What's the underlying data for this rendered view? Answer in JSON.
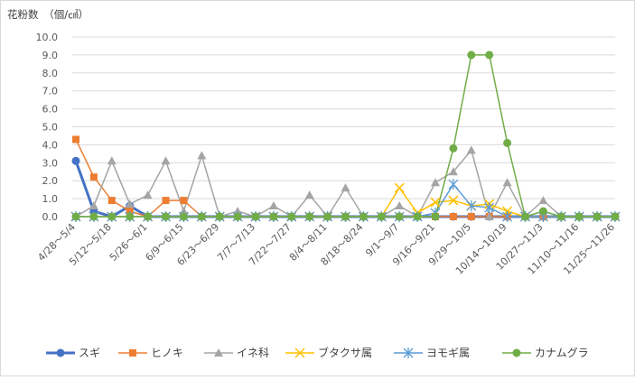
{
  "chart_data": {
    "type": "line",
    "ylabel": "花粉数　（個/㎠）",
    "ylim": [
      0,
      10
    ],
    "yticks": [
      "0.0",
      "1.0",
      "2.0",
      "3.0",
      "4.0",
      "5.0",
      "6.0",
      "7.0",
      "8.0",
      "9.0",
      "10.0"
    ],
    "xticks": [
      "4/28～5/4",
      "5/12～5/18",
      "5/26～6/1",
      "6/9～6/15",
      "6/23～6/29",
      "7/7～7/13",
      "7/22～7/27",
      "8/4～8/11",
      "8/18～8/24",
      "9/1～9/7",
      "9/16～9/21",
      "9/29～10/5",
      "10/14～10/19",
      "10/27～11/3",
      "11/10～11/16",
      "11/25～11/26"
    ],
    "n_points": 31,
    "legend_position": "bottom",
    "series": [
      {
        "name": "スギ",
        "color": "#4472C4",
        "marker": "circle",
        "width": 3,
        "values": [
          3.1,
          0.3,
          0,
          0.6,
          0,
          0,
          0,
          0,
          0,
          0,
          0,
          0,
          0,
          0,
          0,
          0,
          0,
          0,
          0,
          0,
          0,
          0,
          0,
          0,
          0,
          0,
          0,
          0,
          0,
          0,
          0
        ]
      },
      {
        "name": "ヒノキ",
        "color": "#ED7D31",
        "marker": "square",
        "width": 1.5,
        "values": [
          4.3,
          2.2,
          0.9,
          0.3,
          0,
          0.9,
          0.9,
          0,
          0,
          0,
          0,
          0,
          0,
          0,
          0,
          0,
          0,
          0,
          0,
          0,
          0,
          0,
          0,
          0,
          0,
          0,
          0,
          0,
          0,
          0,
          0
        ]
      },
      {
        "name": "イネ科",
        "color": "#A5A5A5",
        "marker": "triangle",
        "width": 1.5,
        "values": [
          0,
          0.6,
          3.1,
          0.7,
          1.2,
          3.1,
          0.3,
          3.4,
          0,
          0.3,
          0,
          0.6,
          0,
          1.2,
          0,
          1.6,
          0,
          0,
          0.6,
          0,
          1.9,
          2.5,
          3.7,
          0,
          1.9,
          0,
          0.9,
          0,
          0,
          0,
          0
        ]
      },
      {
        "name": "ブタクサ属",
        "color": "#FFC000",
        "marker": "x",
        "width": 1.5,
        "values": [
          0,
          0,
          0,
          0,
          0,
          0,
          0,
          0,
          0,
          0,
          0,
          0,
          0,
          0,
          0,
          0,
          0,
          0,
          1.6,
          0.2,
          0.8,
          0.9,
          0.6,
          0.7,
          0.3,
          0,
          0,
          0,
          0,
          0,
          0
        ]
      },
      {
        "name": "ヨモギ属",
        "color": "#5B9BD5",
        "marker": "star",
        "width": 1.5,
        "values": [
          0,
          0,
          0,
          0,
          0,
          0,
          0,
          0,
          0,
          0,
          0,
          0,
          0,
          0,
          0,
          0,
          0,
          0,
          0,
          0,
          0.2,
          1.8,
          0.6,
          0.5,
          0,
          0,
          0,
          0,
          0,
          0,
          0
        ]
      },
      {
        "name": "カナムグラ",
        "color": "#70AD47",
        "marker": "circle",
        "width": 1.5,
        "values": [
          0,
          0,
          0,
          0,
          0,
          0,
          0,
          0,
          0,
          0,
          0,
          0,
          0,
          0,
          0,
          0,
          0,
          0,
          0,
          0,
          0,
          3.8,
          9,
          9,
          4.1,
          0,
          0.3,
          0,
          0,
          0,
          0
        ]
      }
    ]
  }
}
